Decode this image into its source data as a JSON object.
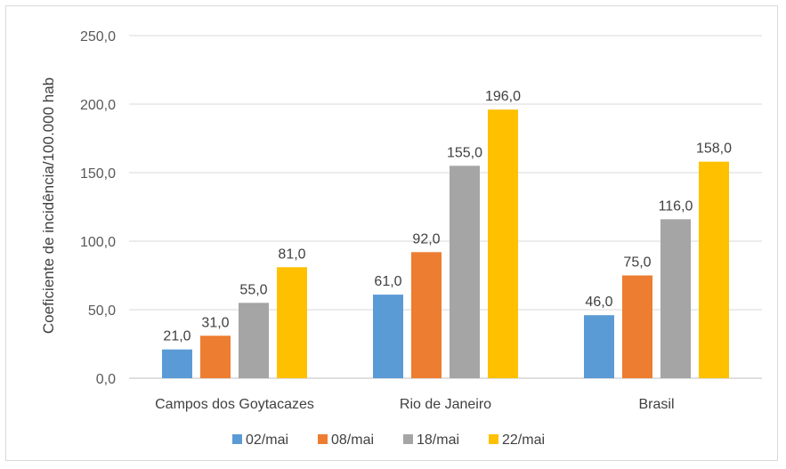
{
  "chart_data": {
    "type": "bar",
    "title": "",
    "xlabel": "",
    "ylabel": "Coeficiente de incidência/100.000 hab",
    "ylim": [
      0,
      250
    ],
    "yticks": [
      0,
      50,
      100,
      150,
      200,
      250
    ],
    "ytick_labels": [
      "0,0",
      "50,0",
      "100,0",
      "150,0",
      "200,0",
      "250,0"
    ],
    "grid": true,
    "legend_position": "bottom",
    "categories": [
      "Campos dos Goytacazes",
      "Rio de Janeiro",
      "Brasil"
    ],
    "series": [
      {
        "name": "02/mai",
        "color": "#5b9bd5",
        "values": [
          21,
          61,
          46
        ],
        "labels": [
          "21,0",
          "61,0",
          "46,0"
        ]
      },
      {
        "name": "08/mai",
        "color": "#ed7d31",
        "values": [
          31,
          92,
          75
        ],
        "labels": [
          "31,0",
          "92,0",
          "75,0"
        ]
      },
      {
        "name": "18/mai",
        "color": "#a5a5a5",
        "values": [
          55,
          155,
          116
        ],
        "labels": [
          "55,0",
          "155,0",
          "116,0"
        ]
      },
      {
        "name": "22/mai",
        "color": "#ffc000",
        "values": [
          81,
          196,
          158
        ],
        "labels": [
          "81,0",
          "196,0",
          "158,0"
        ]
      }
    ]
  }
}
